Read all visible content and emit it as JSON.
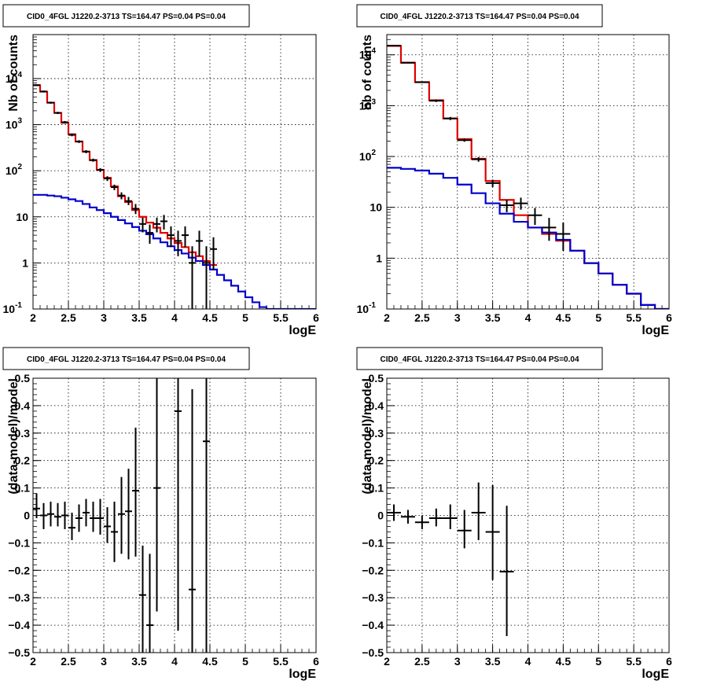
{
  "chart_data": [
    {
      "type": "line",
      "title": "CID0_4FGL J1220.2-3713 TS=164.47 PS=0.04 PS=0.04",
      "xlabel": "logE",
      "ylabel": "Nb of counts",
      "xlim": [
        2,
        6
      ],
      "ylim": [
        0.1,
        90000
      ],
      "yscale": "log",
      "grid": true,
      "xticks": [
        "2",
        "2.5",
        "3",
        "3.5",
        "4",
        "4.5",
        "5",
        "5.5",
        "6"
      ],
      "yticks": [
        {
          "v": 0.1,
          "label": "10",
          "exp": "-1"
        },
        {
          "v": 1,
          "label": "1",
          "exp": ""
        },
        {
          "v": 10,
          "label": "10",
          "exp": ""
        },
        {
          "v": 100,
          "label": "10",
          "exp": "2"
        },
        {
          "v": 1000,
          "label": "10",
          "exp": "3"
        },
        {
          "v": 10000,
          "label": "10",
          "exp": "4"
        }
      ],
      "bin_edges": [
        2,
        2.1,
        2.2,
        2.3,
        2.4,
        2.5,
        2.6,
        2.7,
        2.8,
        2.9,
        3,
        3.1,
        3.2,
        3.3,
        3.4,
        3.5,
        3.6,
        3.7,
        3.8,
        3.9,
        4,
        4.1,
        4.2,
        4.3,
        4.4,
        4.5,
        4.6,
        4.7,
        4.8,
        4.9,
        5,
        5.1,
        5.2,
        5.3,
        5.4,
        5.5,
        5.6,
        5.7,
        5.8,
        5.9,
        6
      ],
      "series": [
        {
          "color": "#e00000",
          "values": [
            7200,
            5200,
            3000,
            1800,
            1100,
            620,
            430,
            260,
            170,
            105,
            70,
            46,
            28,
            21,
            14,
            10,
            7.5,
            5.8,
            4.5,
            3.4,
            2.7,
            2.2,
            1.7,
            1.4,
            1.1,
            0.9
          ]
        },
        {
          "color": "#0000cc",
          "values": [
            30,
            30,
            29,
            28,
            26,
            24,
            22,
            19,
            16,
            14,
            12,
            10,
            8.5,
            7.2,
            6.0,
            5.0,
            4.2,
            3.4,
            2.8,
            2.3,
            1.9,
            1.6,
            1.3,
            1.1,
            0.9,
            0.72,
            0.55,
            0.42,
            0.32,
            0.24,
            0.18,
            0.14,
            0.11,
            0.1,
            0.1,
            0.1,
            0.1,
            0.1,
            0.1,
            0.1
          ]
        }
      ],
      "data_points": [
        {
          "x": 2.05,
          "y": 7200,
          "lo": 6900,
          "hi": 7500
        },
        {
          "x": 2.15,
          "y": 5250,
          "lo": 5000,
          "hi": 5500
        },
        {
          "x": 2.25,
          "y": 3000,
          "lo": 2850,
          "hi": 3150
        },
        {
          "x": 2.35,
          "y": 1800,
          "lo": 1700,
          "hi": 1900
        },
        {
          "x": 2.45,
          "y": 1130,
          "lo": 1060,
          "hi": 1200
        },
        {
          "x": 2.55,
          "y": 600,
          "lo": 560,
          "hi": 640
        },
        {
          "x": 2.65,
          "y": 430,
          "lo": 400,
          "hi": 460
        },
        {
          "x": 2.75,
          "y": 260,
          "lo": 240,
          "hi": 280
        },
        {
          "x": 2.85,
          "y": 170,
          "lo": 157,
          "hi": 183
        },
        {
          "x": 2.95,
          "y": 104,
          "lo": 94,
          "hi": 114
        },
        {
          "x": 3.05,
          "y": 68,
          "lo": 60,
          "hi": 76
        },
        {
          "x": 3.15,
          "y": 44,
          "lo": 38,
          "hi": 50
        },
        {
          "x": 3.25,
          "y": 29,
          "lo": 24,
          "hi": 34
        },
        {
          "x": 3.35,
          "y": 22,
          "lo": 18,
          "hi": 27
        },
        {
          "x": 3.45,
          "y": 15,
          "lo": 11.5,
          "hi": 19
        },
        {
          "x": 3.55,
          "y": 7,
          "lo": 4.6,
          "hi": 9.6
        },
        {
          "x": 3.65,
          "y": 4.5,
          "lo": 2.6,
          "hi": 6.8
        },
        {
          "x": 3.75,
          "y": 7,
          "lo": 4.6,
          "hi": 9.6
        },
        {
          "x": 3.85,
          "y": 8,
          "lo": 5.3,
          "hi": 11
        },
        {
          "x": 3.95,
          "y": 4,
          "lo": 2.2,
          "hi": 6.2
        },
        {
          "x": 4.05,
          "y": 3,
          "lo": 1.4,
          "hi": 5
        },
        {
          "x": 4.15,
          "y": 4,
          "lo": 2.2,
          "hi": 6.2
        },
        {
          "x": 4.25,
          "y": 1,
          "lo": 0.1,
          "hi": 2.3
        },
        {
          "x": 4.35,
          "y": 3,
          "lo": 1.4,
          "hi": 5
        },
        {
          "x": 4.45,
          "y": 1,
          "lo": 0.1,
          "hi": 2.3
        },
        {
          "x": 4.55,
          "y": 2,
          "lo": 0.7,
          "hi": 3.6
        }
      ]
    },
    {
      "type": "line",
      "title": "CID0_4FGL J1220.2-3713 TS=164.47 PS=0.04 PS=0.04",
      "xlabel": "logE",
      "ylabel": "nb of counts",
      "xlim": [
        2,
        6
      ],
      "ylim": [
        0.1,
        25000
      ],
      "yscale": "log",
      "grid": true,
      "xticks": [
        "2",
        "2.5",
        "3",
        "3.5",
        "4",
        "4.5",
        "5",
        "5.5",
        "6"
      ],
      "yticks": [
        {
          "v": 0.1,
          "label": "10",
          "exp": "-1"
        },
        {
          "v": 1,
          "label": "1",
          "exp": ""
        },
        {
          "v": 10,
          "label": "10",
          "exp": ""
        },
        {
          "v": 100,
          "label": "10",
          "exp": "2"
        },
        {
          "v": 1000,
          "label": "10",
          "exp": "3"
        },
        {
          "v": 10000,
          "label": "10",
          "exp": "4"
        }
      ],
      "bin_edges": [
        2,
        2.2,
        2.4,
        2.6,
        2.8,
        3,
        3.2,
        3.4,
        3.6,
        3.8,
        4,
        4.2,
        4.4,
        4.6,
        4.8,
        5,
        5.2,
        5.4,
        5.6,
        5.8,
        6
      ],
      "series": [
        {
          "color": "#e00000",
          "values": [
            15000,
            7000,
            2900,
            1280,
            560,
            220,
            90,
            33,
            14,
            7,
            4,
            3,
            2.2,
            1.4,
            0.8,
            0.5,
            0.3,
            0.2,
            0.12,
            0.1
          ]
        },
        {
          "color": "#0000cc",
          "values": [
            60,
            57,
            53,
            46,
            38,
            28,
            19,
            12,
            7.5,
            5.2,
            4,
            3.2,
            2.3,
            1.4,
            0.8,
            0.5,
            0.3,
            0.2,
            0.12,
            0.1
          ]
        }
      ],
      "data_points": [
        {
          "x": 2.1,
          "y": 15200,
          "lo": 14800,
          "hi": 15600
        },
        {
          "x": 2.3,
          "y": 7000,
          "lo": 6800,
          "hi": 7200
        },
        {
          "x": 2.5,
          "y": 2900,
          "lo": 2800,
          "hi": 3000
        },
        {
          "x": 2.7,
          "y": 1250,
          "lo": 1180,
          "hi": 1320
        },
        {
          "x": 2.9,
          "y": 560,
          "lo": 520,
          "hi": 600
        },
        {
          "x": 3.1,
          "y": 210,
          "lo": 195,
          "hi": 225
        },
        {
          "x": 3.3,
          "y": 88,
          "lo": 79,
          "hi": 97
        },
        {
          "x": 3.5,
          "y": 30,
          "lo": 25,
          "hi": 35
        },
        {
          "x": 3.7,
          "y": 11,
          "lo": 8,
          "hi": 14
        },
        {
          "x": 3.9,
          "y": 12,
          "lo": 9,
          "hi": 15.5
        },
        {
          "x": 4.1,
          "y": 7,
          "lo": 4.5,
          "hi": 9.7
        },
        {
          "x": 4.3,
          "y": 4,
          "lo": 2.2,
          "hi": 6.2
        },
        {
          "x": 4.5,
          "y": 3,
          "lo": 1.4,
          "hi": 5
        }
      ]
    },
    {
      "type": "scatter",
      "title": "CID0_4FGL J1220.2-3713 TS=164.47 PS=0.04 PS=0.04",
      "xlabel": "logE",
      "ylabel": "(data-model)/model",
      "xlim": [
        2,
        6
      ],
      "ylim": [
        -0.5,
        0.5
      ],
      "grid": true,
      "xticks": [
        "2",
        "2.5",
        "3",
        "3.5",
        "4",
        "4.5",
        "5",
        "5.5",
        "6"
      ],
      "yticks": [
        "-0.5",
        "-0.4",
        "-0.3",
        "-0.2",
        "-0.1",
        "0",
        "0.1",
        "0.2",
        "0.3",
        "0.4",
        "0.5"
      ],
      "xhalf": 0.05,
      "points": [
        {
          "x": 2.05,
          "y": 0.025,
          "lo": -0.01,
          "hi": 0.08
        },
        {
          "x": 2.15,
          "y": 0.0,
          "lo": -0.05,
          "hi": 0.045
        },
        {
          "x": 2.25,
          "y": 0.005,
          "lo": -0.04,
          "hi": 0.05
        },
        {
          "x": 2.35,
          "y": -0.005,
          "lo": -0.04,
          "hi": 0.045
        },
        {
          "x": 2.45,
          "y": 0.0,
          "lo": -0.05,
          "hi": 0.05
        },
        {
          "x": 2.55,
          "y": -0.045,
          "lo": -0.09,
          "hi": 0.01
        },
        {
          "x": 2.65,
          "y": -0.01,
          "lo": -0.06,
          "hi": 0.04
        },
        {
          "x": 2.75,
          "y": 0.01,
          "lo": -0.04,
          "hi": 0.06
        },
        {
          "x": 2.85,
          "y": -0.01,
          "lo": -0.06,
          "hi": 0.05
        },
        {
          "x": 2.95,
          "y": -0.01,
          "lo": -0.07,
          "hi": 0.06
        },
        {
          "x": 3.05,
          "y": -0.04,
          "lo": -0.1,
          "hi": 0.03
        },
        {
          "x": 3.15,
          "y": -0.06,
          "lo": -0.17,
          "hi": 0.05
        },
        {
          "x": 3.25,
          "y": 0.005,
          "lo": -0.14,
          "hi": 0.14
        },
        {
          "x": 3.35,
          "y": 0.015,
          "lo": -0.16,
          "hi": 0.17
        },
        {
          "x": 3.45,
          "y": 0.09,
          "lo": -0.15,
          "hi": 0.32
        },
        {
          "x": 3.55,
          "y": -0.29,
          "lo": -0.5,
          "hi": -0.11
        },
        {
          "x": 3.65,
          "y": -0.4,
          "lo": -0.5,
          "hi": -0.14
        },
        {
          "x": 3.75,
          "y": 0.1,
          "lo": -0.35,
          "hi": 0.5
        },
        {
          "x": 4.05,
          "y": 0.38,
          "lo": -0.42,
          "hi": 0.5
        },
        {
          "x": 4.25,
          "y": -0.27,
          "lo": -0.5,
          "hi": 0.46
        },
        {
          "x": 4.45,
          "y": 0.27,
          "lo": -0.5,
          "hi": 0.5
        }
      ]
    },
    {
      "type": "scatter",
      "title": "CID0_4FGL J1220.2-3713 TS=164.47 PS=0.04 PS=0.04",
      "xlabel": "logE",
      "ylabel": "(data-model)/model",
      "xlim": [
        2,
        6
      ],
      "ylim": [
        -0.5,
        0.5
      ],
      "grid": true,
      "xticks": [
        "2",
        "2.5",
        "3",
        "3.5",
        "4",
        "4.5",
        "5",
        "5.5",
        "6"
      ],
      "yticks": [
        "-0.5",
        "-0.4",
        "-0.3",
        "-0.2",
        "-0.1",
        "0",
        "0.1",
        "0.2",
        "0.3",
        "0.4",
        "0.5"
      ],
      "xhalf": 0.1,
      "points": [
        {
          "x": 2.1,
          "y": 0.01,
          "lo": -0.02,
          "hi": 0.04
        },
        {
          "x": 2.3,
          "y": -0.005,
          "lo": -0.03,
          "hi": 0.02
        },
        {
          "x": 2.5,
          "y": -0.025,
          "lo": -0.05,
          "hi": 0.0
        },
        {
          "x": 2.7,
          "y": -0.01,
          "lo": -0.04,
          "hi": 0.025
        },
        {
          "x": 2.9,
          "y": -0.01,
          "lo": -0.05,
          "hi": 0.04
        },
        {
          "x": 3.1,
          "y": -0.055,
          "lo": -0.12,
          "hi": 0.02
        },
        {
          "x": 3.3,
          "y": 0.01,
          "lo": -0.09,
          "hi": 0.12
        },
        {
          "x": 3.5,
          "y": -0.06,
          "lo": -0.235,
          "hi": 0.11
        },
        {
          "x": 3.7,
          "y": -0.205,
          "lo": -0.44,
          "hi": 0.035
        }
      ]
    }
  ]
}
